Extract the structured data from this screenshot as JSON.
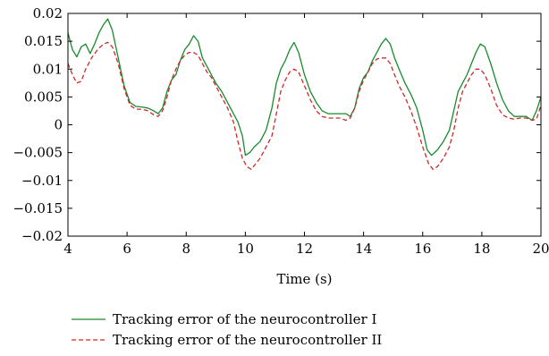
{
  "chart_data": {
    "type": "line",
    "title": "",
    "xlabel": "Time (s)",
    "ylabel": "",
    "xlim": [
      4,
      20
    ],
    "ylim": [
      -0.02,
      0.02
    ],
    "x_ticks": [
      "4",
      "6",
      "8",
      "10",
      "12",
      "14",
      "16",
      "18",
      "20"
    ],
    "y_ticks": [
      "0.02",
      "0.015",
      "0.01",
      "0.005",
      "0",
      "−0.005",
      "−0.01",
      "−0.015",
      "−0.02"
    ],
    "grid": false,
    "legend_position": "bottom",
    "series": [
      {
        "name": "Tracking error of the neurocontroller I",
        "color": "#1a8a2e",
        "style": "solid",
        "x": [
          4.0,
          4.15,
          4.3,
          4.45,
          4.6,
          4.75,
          4.9,
          5.05,
          5.2,
          5.35,
          5.5,
          5.7,
          5.9,
          6.1,
          6.3,
          6.5,
          6.7,
          6.9,
          7.05,
          7.2,
          7.35,
          7.5,
          7.65,
          7.8,
          7.95,
          8.1,
          8.25,
          8.4,
          8.55,
          8.7,
          8.85,
          9.0,
          9.2,
          9.4,
          9.6,
          9.75,
          9.9,
          10.0,
          10.15,
          10.3,
          10.5,
          10.7,
          10.9,
          11.05,
          11.2,
          11.35,
          11.5,
          11.65,
          11.8,
          12.0,
          12.2,
          12.4,
          12.6,
          12.8,
          13.0,
          13.2,
          13.4,
          13.55,
          13.7,
          13.85,
          14.0,
          14.15,
          14.3,
          14.45,
          14.6,
          14.75,
          14.9,
          15.05,
          15.2,
          15.4,
          15.6,
          15.8,
          16.0,
          16.15,
          16.3,
          16.5,
          16.7,
          16.9,
          17.05,
          17.2,
          17.35,
          17.5,
          17.65,
          17.8,
          17.95,
          18.1,
          18.3,
          18.5,
          18.7,
          18.9,
          19.1,
          19.3,
          19.5,
          19.7,
          19.85,
          20.0
        ],
        "y": [
          0.0165,
          0.0135,
          0.0122,
          0.014,
          0.0145,
          0.0128,
          0.0145,
          0.0165,
          0.018,
          0.019,
          0.017,
          0.012,
          0.007,
          0.004,
          0.0033,
          0.0032,
          0.003,
          0.0025,
          0.002,
          0.003,
          0.006,
          0.008,
          0.009,
          0.0115,
          0.0135,
          0.0145,
          0.016,
          0.015,
          0.012,
          0.0105,
          0.009,
          0.0075,
          0.006,
          0.004,
          0.002,
          0.0005,
          -0.002,
          -0.0055,
          -0.005,
          -0.004,
          -0.003,
          -0.001,
          0.003,
          0.0075,
          0.01,
          0.0115,
          0.0135,
          0.0148,
          0.013,
          0.009,
          0.006,
          0.004,
          0.0025,
          0.002,
          0.002,
          0.002,
          0.002,
          0.0015,
          0.003,
          0.0065,
          0.0085,
          0.0095,
          0.0115,
          0.013,
          0.0145,
          0.0155,
          0.0145,
          0.012,
          0.01,
          0.0075,
          0.0055,
          0.003,
          -0.001,
          -0.0045,
          -0.0055,
          -0.0045,
          -0.003,
          -0.001,
          0.0025,
          0.006,
          0.0075,
          0.009,
          0.011,
          0.013,
          0.0145,
          0.014,
          0.011,
          0.0075,
          0.0045,
          0.0025,
          0.0015,
          0.0015,
          0.0015,
          0.0008,
          0.0025,
          0.005
        ]
      },
      {
        "name": "Tracking error of the neurocontroller II",
        "color": "#cc2a2a",
        "style": "dashed",
        "x": [
          4.0,
          4.15,
          4.3,
          4.45,
          4.6,
          4.8,
          5.0,
          5.2,
          5.35,
          5.5,
          5.7,
          5.9,
          6.1,
          6.3,
          6.5,
          6.7,
          6.9,
          7.05,
          7.2,
          7.35,
          7.5,
          7.65,
          7.8,
          7.95,
          8.1,
          8.25,
          8.4,
          8.55,
          8.7,
          8.85,
          9.0,
          9.2,
          9.4,
          9.6,
          9.75,
          9.9,
          10.05,
          10.2,
          10.35,
          10.5,
          10.7,
          10.9,
          11.05,
          11.2,
          11.35,
          11.5,
          11.65,
          11.8,
          12.0,
          12.2,
          12.4,
          12.6,
          12.8,
          13.0,
          13.2,
          13.4,
          13.55,
          13.7,
          13.85,
          14.0,
          14.15,
          14.3,
          14.45,
          14.6,
          14.75,
          14.9,
          15.05,
          15.2,
          15.4,
          15.6,
          15.8,
          16.0,
          16.2,
          16.35,
          16.5,
          16.7,
          16.9,
          17.05,
          17.2,
          17.35,
          17.5,
          17.65,
          17.8,
          17.95,
          18.1,
          18.3,
          18.5,
          18.7,
          18.9,
          19.1,
          19.3,
          19.5,
          19.7,
          19.85,
          20.0
        ],
        "y": [
          0.011,
          0.009,
          0.0075,
          0.0078,
          0.01,
          0.012,
          0.0135,
          0.0145,
          0.0148,
          0.014,
          0.011,
          0.0065,
          0.0035,
          0.0028,
          0.0028,
          0.0025,
          0.0018,
          0.0015,
          0.0025,
          0.005,
          0.008,
          0.01,
          0.0115,
          0.0125,
          0.013,
          0.013,
          0.0125,
          0.011,
          0.0095,
          0.0085,
          0.007,
          0.005,
          0.003,
          0.0005,
          -0.003,
          -0.006,
          -0.0075,
          -0.008,
          -0.007,
          -0.006,
          -0.004,
          -0.002,
          0.002,
          0.006,
          0.008,
          0.0095,
          0.01,
          0.0095,
          0.007,
          0.0045,
          0.0025,
          0.0015,
          0.0012,
          0.0012,
          0.0012,
          0.0008,
          0.0012,
          0.003,
          0.006,
          0.008,
          0.0095,
          0.011,
          0.0118,
          0.012,
          0.012,
          0.011,
          0.009,
          0.007,
          0.005,
          0.0025,
          -0.0005,
          -0.004,
          -0.007,
          -0.008,
          -0.0075,
          -0.006,
          -0.004,
          -0.001,
          0.003,
          0.006,
          0.0075,
          0.009,
          0.01,
          0.01,
          0.009,
          0.0065,
          0.0035,
          0.0018,
          0.0012,
          0.001,
          0.0012,
          0.0012,
          0.0008,
          0.001,
          0.0035
        ]
      }
    ]
  }
}
